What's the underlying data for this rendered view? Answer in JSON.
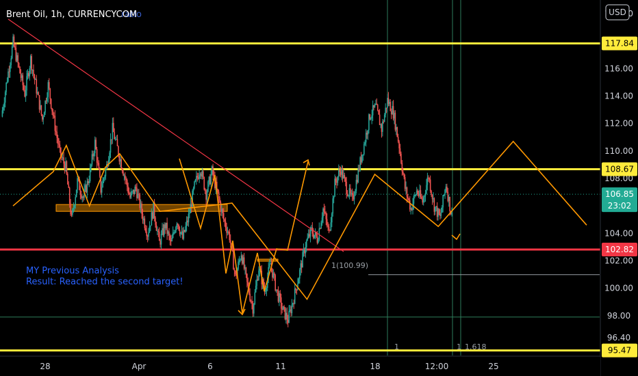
{
  "header": {
    "symbol_title": "Brent Oil, 1h, CURRENCYCOM",
    "faded_overlay_text": "ratio"
  },
  "currency_button": "USD",
  "annotation": {
    "line1": "MY Previous Analysis",
    "line2": "Result: Reached the second target!"
  },
  "fib_labels": {
    "level_label": "1(100.99)",
    "marker_a": "1",
    "marker_b": "1",
    "marker_c": "1.618"
  },
  "chart_data": {
    "type": "candlestick",
    "ylim": [
      95.1,
      121.0
    ],
    "y_ticks": [
      "120.00",
      "116.00",
      "114.00",
      "112.00",
      "110.00",
      "108.00",
      "104.00",
      "102.00",
      "100.00",
      "98.00",
      "96.40"
    ],
    "x_ticks": [
      "28",
      "Apr",
      "6",
      "11",
      "18",
      "12:00",
      "25"
    ],
    "series": [
      {
        "values": [
          112.5,
          115.3,
          117.9,
          116.0,
          114.2,
          116.7,
          114.5,
          112.3,
          114.8,
          112.2,
          109.8,
          108.8,
          105.0,
          107.8,
          106.6,
          108.1,
          110.6,
          107.2,
          108.9,
          111.6,
          109.9,
          108.3,
          106.6,
          107.3,
          105.5,
          104.0,
          105.8,
          103.3,
          104.6,
          103.2,
          105.0,
          103.6,
          105.2,
          107.4,
          108.8,
          106.9,
          108.5,
          106.8,
          105.0,
          103.8,
          100.8,
          102.6,
          100.3,
          98.6,
          101.5,
          99.8,
          101.8,
          99.9,
          98.5,
          97.7,
          99.3,
          101.2,
          103.2,
          104.2,
          103.6,
          105.8,
          104.0,
          107.6,
          108.7,
          107.3,
          106.4,
          108.5,
          110.5,
          112.6,
          113.2,
          111.6,
          113.7,
          112.8,
          110.4,
          107.3,
          105.8,
          107.1,
          106.3,
          108.2,
          106.0,
          105.1,
          107.6,
          105.2
        ]
      }
    ],
    "levels": [
      {
        "value": 117.84,
        "label": "117.84",
        "color": "#ffeb3b"
      },
      {
        "value": 108.67,
        "label": "108.67",
        "color": "#ffeb3b"
      },
      {
        "value": 102.82,
        "label": "102.82",
        "color": "#f23645"
      },
      {
        "value": 95.47,
        "label": "95.47",
        "color": "#ffeb3b"
      }
    ],
    "current_price": {
      "value": 106.85,
      "label": "106.85",
      "countdown": "23:02",
      "color": "#22ab94"
    },
    "fib_level": 100.99,
    "green_level": 97.9,
    "zone": {
      "top": 106.1,
      "bottom": 105.6
    },
    "wave_path": [
      [
        105.5,
        106.0
      ],
      [
        108.3,
        108.5
      ],
      [
        109.2,
        110.4
      ],
      [
        110.8,
        106.0
      ],
      [
        111.9,
        108.8
      ],
      [
        112.9,
        109.8
      ],
      [
        115.7,
        105.6
      ],
      [
        120.7,
        106.2
      ],
      [
        125.9,
        99.2
      ],
      [
        130.6,
        108.3
      ],
      [
        135.0,
        104.5
      ],
      [
        140.2,
        110.7
      ],
      [
        145.3,
        104.6
      ]
    ],
    "colors": {
      "candle_up": "#26a69a",
      "candle_down": "#ef5350",
      "wave": "#ff9800",
      "trend": "#f23645",
      "zone": "#ff9800",
      "vline": "#2e7d5b"
    }
  }
}
